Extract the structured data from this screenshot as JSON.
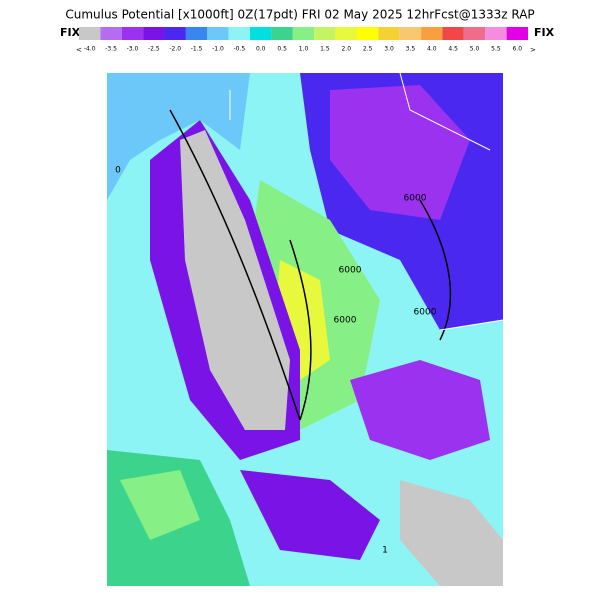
{
  "header": {
    "title": "Cumulus Potential [x1000ft] 0Z(17pdt) FRI 02 May 2025 12hrFcst@1333z RAP"
  },
  "legend": {
    "left_label": "FIX",
    "right_label": "FIX",
    "below_min": "<",
    "above_max": ">",
    "items": [
      {
        "label": "-4.0",
        "color": "#c8c8c8"
      },
      {
        "label": "-3.5",
        "color": "#b46cf0"
      },
      {
        "label": "-3.0",
        "color": "#9a32f0"
      },
      {
        "label": "-2.5",
        "color": "#7a14e6"
      },
      {
        "label": "-2.0",
        "color": "#4a28f0"
      },
      {
        "label": "-1.5",
        "color": "#3a86f0"
      },
      {
        "label": "-1.0",
        "color": "#6cc8f8"
      },
      {
        "label": "-0.5",
        "color": "#8cf4f4"
      },
      {
        "label": "0.0",
        "color": "#00e0e0"
      },
      {
        "label": "0.5",
        "color": "#3cd48c"
      },
      {
        "label": "1.0",
        "color": "#86f086"
      },
      {
        "label": "1.5",
        "color": "#c4f464"
      },
      {
        "label": "2.0",
        "color": "#e8f83c"
      },
      {
        "label": "2.5",
        "color": "#ffff00"
      },
      {
        "label": "3.0",
        "color": "#f4d232"
      },
      {
        "label": "3.5",
        "color": "#f8c870"
      },
      {
        "label": "4.0",
        "color": "#f8a040"
      },
      {
        "label": "4.5",
        "color": "#f04848"
      },
      {
        "label": "5.0",
        "color": "#f06c8c"
      },
      {
        "label": "5.5",
        "color": "#f48ce0"
      },
      {
        "label": "6.0",
        "color": "#e400e4"
      }
    ]
  },
  "map": {
    "contour_labels": [
      "6000",
      "6000",
      "6000",
      "6000",
      "0",
      "1"
    ]
  }
}
